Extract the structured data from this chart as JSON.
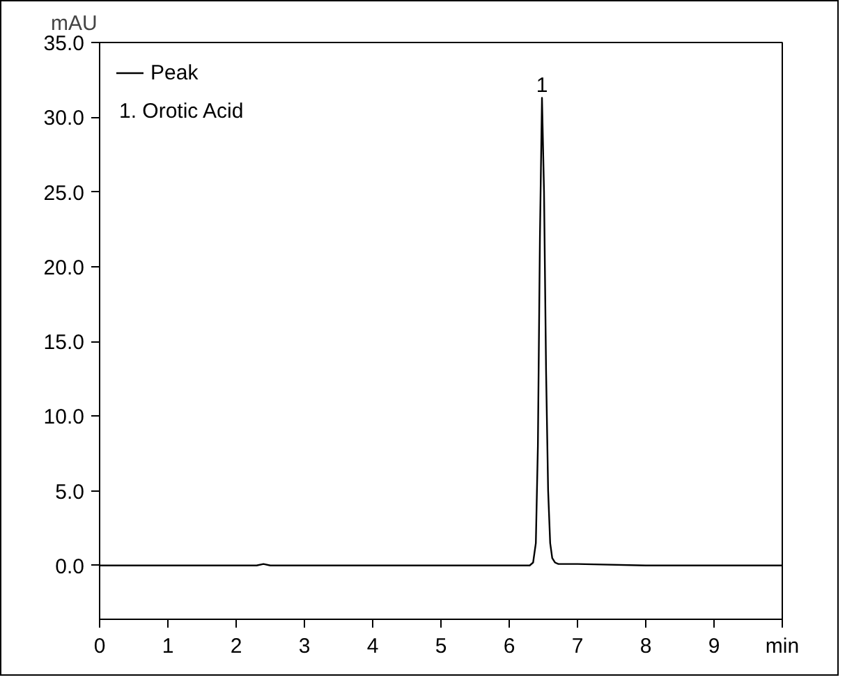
{
  "chart_data": {
    "type": "line",
    "xlabel": "min",
    "ylabel": "mAU",
    "x": [
      0,
      1,
      2,
      2.3,
      2.4,
      2.5,
      3,
      4,
      5,
      6,
      6.3,
      6.35,
      6.39,
      6.42,
      6.45,
      6.48,
      6.51,
      6.54,
      6.57,
      6.6,
      6.63,
      6.67,
      6.72,
      6.8,
      7,
      8,
      9,
      10
    ],
    "series": [
      {
        "name": "Peak",
        "color": "#000000",
        "values": [
          0,
          0,
          0,
          0,
          0.1,
          0,
          0,
          0,
          0,
          0,
          0,
          0.2,
          1.5,
          8,
          22,
          31.3,
          25,
          13,
          5,
          1.5,
          0.5,
          0.2,
          0.1,
          0.1,
          0.1,
          0,
          0,
          0
        ]
      }
    ],
    "xlim": [
      0,
      10
    ],
    "ylim": [
      -3.6,
      35
    ],
    "xticks": [
      0,
      1,
      2,
      3,
      4,
      5,
      6,
      7,
      8,
      9,
      {
        "value": 10,
        "label": null
      }
    ],
    "yticks": [
      {
        "value": 0,
        "label": "0.0"
      },
      {
        "value": 5,
        "label": "5.0"
      },
      {
        "value": 10,
        "label": "10.0"
      },
      {
        "value": 15,
        "label": "15.0"
      },
      {
        "value": 20,
        "label": "20.0"
      },
      {
        "value": 25,
        "label": "25.0"
      },
      {
        "value": 30,
        "label": "30.0"
      },
      {
        "value": 35,
        "label": "35.0"
      }
    ],
    "annotations": [
      {
        "text": "1",
        "x": 6.48,
        "y": 31.3
      },
      "1. Orotic Acid"
    ],
    "legend": "top left",
    "grid": false
  }
}
